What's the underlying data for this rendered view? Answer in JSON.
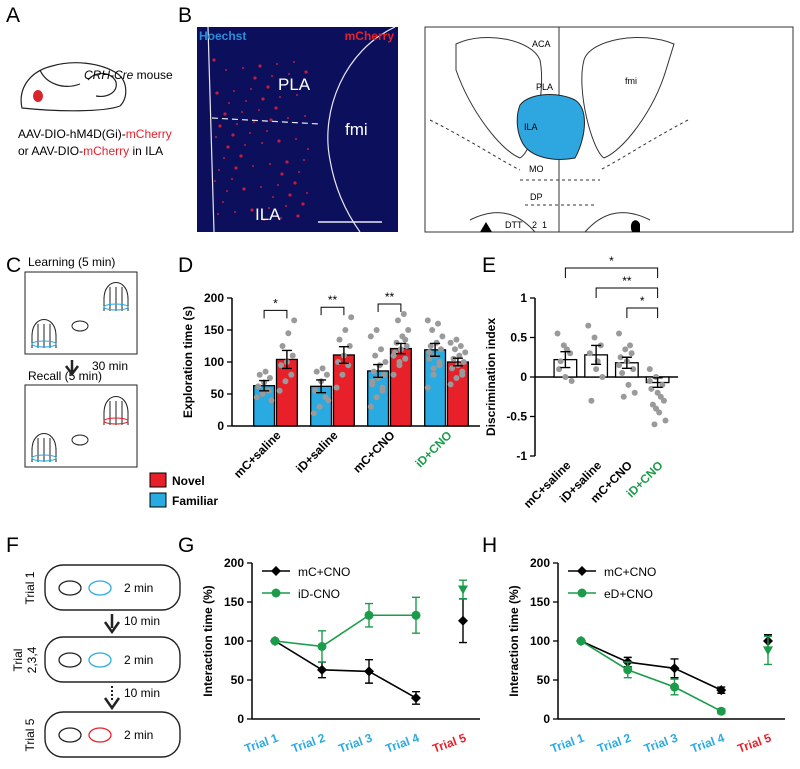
{
  "panel_labels": [
    "A",
    "B",
    "C",
    "D",
    "E",
    "F",
    "G",
    "H"
  ],
  "panel_a": {
    "mouse_italic": "CRH-Cre",
    "mouse_rest": " mouse",
    "line1": [
      "AAV-DIO-hM4D(Gi)-",
      "mCherry"
    ],
    "line2": [
      "or AAV-DIO-",
      "mCherry",
      " in ILA"
    ]
  },
  "panel_b": {
    "stain_1": "Hoechst",
    "stain_2": "mCherry",
    "regions": [
      "PLA",
      "fmi",
      "ILA"
    ],
    "atlas": [
      "ACA",
      "PLA",
      "fmi",
      "ILA",
      "MO",
      "DP",
      "DTT",
      "2",
      "1"
    ]
  },
  "panel_c": {
    "learning": "Learning (5 min)",
    "delay": "30 min",
    "recall": "Recall (5 min)"
  },
  "panel_f": {
    "trial_1": "Trial 1",
    "trial_234": [
      "Trial",
      "2,3,4"
    ],
    "trial_5": "Trial 5",
    "durations": [
      "2 min",
      "2 min",
      "2 min"
    ],
    "delays": [
      "10 min",
      "10 min"
    ]
  },
  "chart_data": [
    {
      "type": "bar",
      "y_label": "Exploration time (s)",
      "categories": [
        "mC+saline",
        "iD+saline",
        "mC+CNO",
        "iD+CNO"
      ],
      "category_colors": [
        "#000000",
        "#000000",
        "#000000",
        "#1a9c4a"
      ],
      "series": [
        {
          "name": "Familiar",
          "color": "#29abe2",
          "values": [
            63,
            62,
            86,
            119
          ],
          "errors": [
            8,
            10,
            10,
            10
          ],
          "points": [
            [
              45,
              50,
              55,
              62,
              68,
              75,
              80,
              85,
              40
            ],
            [
              20,
              30,
              45,
              55,
              70,
              80,
              85,
              90,
              40
            ],
            [
              30,
              45,
              55,
              65,
              75,
              80,
              85,
              95,
              100,
              110,
              120,
              140,
              150,
              60,
              70
            ],
            [
              60,
              80,
              95,
              105,
              110,
              120,
              125,
              130,
              140,
              150,
              160,
              165,
              90,
              100,
              115
            ]
          ]
        },
        {
          "name": "Novel",
          "color": "#e8202a",
          "values": [
            104,
            111,
            121,
            100
          ],
          "errors": [
            14,
            13,
            8,
            6
          ],
          "points": [
            [
              55,
              70,
              80,
              95,
              100,
              110,
              125,
              145,
              165
            ],
            [
              60,
              80,
              95,
              100,
              110,
              125,
              135,
              150,
              170
            ],
            [
              80,
              95,
              105,
              115,
              120,
              125,
              130,
              140,
              150,
              165,
              175,
              110,
              100,
              135
            ],
            [
              65,
              75,
              85,
              90,
              95,
              100,
              105,
              110,
              115,
              120,
              125,
              130,
              135,
              80
            ]
          ]
        }
      ],
      "ylim": [
        0,
        200
      ],
      "yticks": [
        0,
        50,
        100,
        150,
        200
      ],
      "significance": [
        "*",
        "**",
        "**",
        null
      ]
    },
    {
      "type": "bar",
      "y_label": "Discrimination index",
      "categories": [
        "mC+saline",
        "iD+saline",
        "mC+CNO",
        "iD+CNO"
      ],
      "category_colors": [
        "#000000",
        "#000000",
        "#000000",
        "#1a9c4a"
      ],
      "series": [
        {
          "color": "#ffffff",
          "values": [
            0.22,
            0.28,
            0.18,
            -0.07
          ],
          "errors": [
            0.1,
            0.12,
            0.07,
            0.06
          ],
          "points": [
            [
              0.55,
              0.4,
              0.3,
              0.1,
              0,
              -0.05,
              0.2,
              0.35
            ],
            [
              0.65,
              0.5,
              0.4,
              0.3,
              0.1,
              0,
              -0.3,
              0.2
            ],
            [
              0.55,
              0.35,
              0.3,
              0.25,
              0.2,
              0.1,
              0.05,
              -0.1,
              -0.2,
              -0.25,
              0.4,
              0.15
            ],
            [
              0.1,
              0,
              -0.1,
              -0.15,
              -0.2,
              -0.3,
              -0.35,
              -0.45,
              -0.55,
              -0.6,
              -0.25,
              -0.05,
              -0.4
            ]
          ]
        }
      ],
      "ylim": [
        -1,
        1
      ],
      "yticks": [
        -1,
        -0.5,
        0,
        0.5,
        1
      ],
      "comparisons": [
        {
          "text": "*",
          "pair": [
            "mC+saline",
            "iD+CNO"
          ]
        },
        {
          "text": "**",
          "pair": [
            "iD+saline",
            "iD+CNO"
          ]
        },
        {
          "text": "*",
          "pair": [
            "mC+CNO",
            "iD+CNO"
          ]
        }
      ]
    },
    {
      "type": "line",
      "y_label": "Interaction time (%)",
      "categories": [
        "Trial 1",
        "Trial 2",
        "Trial 3",
        "Trial 4",
        "Trial 5"
      ],
      "category_colors": [
        "#29abe2",
        "#29abe2",
        "#29abe2",
        "#29abe2",
        "#e8202a"
      ],
      "series": [
        {
          "name": "mC+CNO",
          "color": "#000000",
          "marker": "diamond",
          "values": [
            100,
            63,
            61,
            27,
            null
          ],
          "errors": [
            0,
            10,
            15,
            8,
            null
          ],
          "trial_5": {
            "value": 126,
            "error": 28,
            "marker": "diamond"
          }
        },
        {
          "name": "iD-CNO",
          "color": "#1a9c4a",
          "marker": "circle",
          "values": [
            100,
            93,
            133,
            133,
            null
          ],
          "errors": [
            0,
            20,
            15,
            23,
            null
          ],
          "trial_5": {
            "value": 166,
            "error": 12,
            "marker": "triangle"
          }
        }
      ],
      "ylim": [
        0,
        200
      ],
      "yticks": [
        0,
        50,
        100,
        150,
        200
      ]
    },
    {
      "type": "line",
      "y_label": "Interaction time (%)",
      "categories": [
        "Trial 1",
        "Trial 2",
        "Trial 3",
        "Trial 4",
        "Trial 5"
      ],
      "category_colors": [
        "#29abe2",
        "#29abe2",
        "#29abe2",
        "#29abe2",
        "#e8202a"
      ],
      "series": [
        {
          "name": "mC+CNO",
          "color": "#000000",
          "marker": "diamond",
          "values": [
            100,
            73,
            65,
            37,
            null
          ],
          "errors": [
            0,
            6,
            12,
            4,
            null
          ],
          "trial_5": {
            "value": 100,
            "error": 8,
            "marker": "diamond"
          }
        },
        {
          "name": "eD+CNO",
          "color": "#1a9c4a",
          "marker": "circle",
          "values": [
            100,
            63,
            41,
            10,
            null
          ],
          "errors": [
            0,
            10,
            10,
            3,
            null
          ],
          "trial_5": {
            "value": 88,
            "error": 18,
            "marker": "triangle"
          }
        }
      ],
      "ylim": [
        0,
        200
      ],
      "yticks": [
        0,
        50,
        100,
        150,
        200
      ]
    }
  ]
}
